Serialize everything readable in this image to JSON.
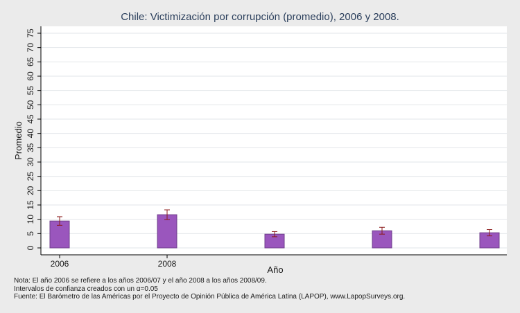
{
  "chart_data": {
    "type": "bar",
    "title": "Chile: Victimización por corrupción (promedio), 2006 y 2008.",
    "xlabel": "Año",
    "ylabel": "Promedio",
    "ylim": [
      0,
      75
    ],
    "yticks": [
      0,
      5,
      10,
      15,
      20,
      25,
      30,
      35,
      40,
      45,
      50,
      55,
      60,
      65,
      70,
      75
    ],
    "grid": true,
    "categories": [
      "2006",
      "2008",
      "",
      "",
      ""
    ],
    "values": [
      9.4,
      11.6,
      4.8,
      6.0,
      5.3
    ],
    "ci_low": [
      7.9,
      9.9,
      3.9,
      4.8,
      4.2
    ],
    "ci_high": [
      10.9,
      13.3,
      5.7,
      7.2,
      6.4
    ],
    "bar_color": "#9a56bd",
    "errorbar_color": "#8b1a1a"
  },
  "notes": {
    "line1": "Nota: El año 2006 se refiere a los años 2006/07 y el año 2008 a los años 2008/09.",
    "line2": "Intervalos de confianza creados con un α=0.05",
    "line3": "Fuente: El Barómetro de las Américas por el Proyecto de Opinión Pública de América Latina (LAPOP), www.LapopSurveys.org."
  }
}
